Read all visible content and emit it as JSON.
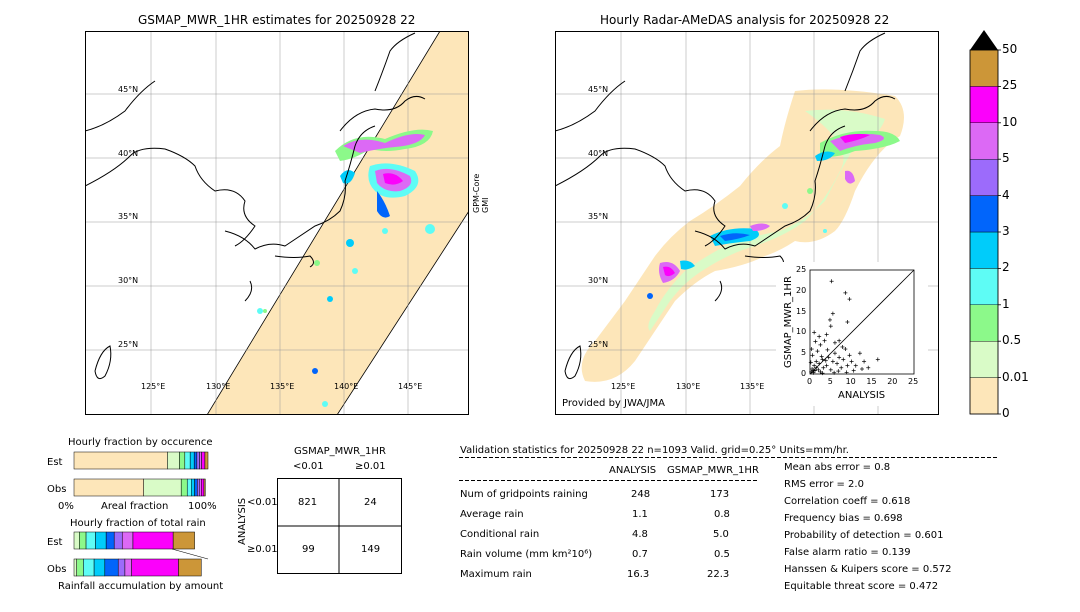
{
  "left_map": {
    "title": "GSMAP_MWR_1HR estimates for 20250928 22",
    "satellite_label": "GPM-Core\nGMI",
    "lat_labels": [
      "45°N",
      "40°N",
      "35°N",
      "30°N",
      "25°N"
    ],
    "lon_labels": [
      "125°E",
      "130°E",
      "135°E",
      "140°E",
      "145°E"
    ]
  },
  "right_map": {
    "title": "Hourly Radar-AMeDAS analysis for 20250928 22",
    "provided_by": "Provided by JWA/JMA",
    "lat_labels": [
      "45°N",
      "40°N",
      "35°N",
      "30°N",
      "25°N"
    ],
    "lon_labels": [
      "125°E",
      "130°E",
      "135°E"
    ]
  },
  "colorbar": {
    "labels": [
      "0",
      "0.01",
      "0.5",
      "1",
      "2",
      "3",
      "4",
      "5",
      "10",
      "25",
      "50"
    ],
    "colors": [
      "#fde6b9",
      "#d9fbc7",
      "#8cf98a",
      "#5efcf5",
      "#00ccfa",
      "#0165fb",
      "#9c6bfb",
      "#dc69f5",
      "#fb01fb",
      "#cc9638"
    ],
    "extend_color": "#000000"
  },
  "chart_data": [
    {
      "type": "scatter",
      "title": "",
      "xlabel": "ANALYSIS",
      "ylabel": "GSMAP_MWR_1HR",
      "xlim": [
        0,
        25
      ],
      "ylim": [
        0,
        25
      ],
      "x_ticks": [
        "0",
        "5",
        "10",
        "15",
        "20",
        "25"
      ],
      "y_ticks": [
        "0",
        "5",
        "10",
        "15",
        "20",
        "25"
      ],
      "points": [
        [
          0.3,
          0.5
        ],
        [
          0.5,
          1.2
        ],
        [
          0.8,
          0.3
        ],
        [
          1.0,
          2.0
        ],
        [
          1.2,
          0.8
        ],
        [
          1.5,
          3.0
        ],
        [
          0.6,
          4.5
        ],
        [
          2.0,
          1.0
        ],
        [
          2.2,
          2.5
        ],
        [
          2.5,
          0.5
        ],
        [
          3.0,
          3.5
        ],
        [
          3.2,
          1.5
        ],
        [
          0.4,
          6.0
        ],
        [
          1.8,
          5.5
        ],
        [
          4.0,
          2.0
        ],
        [
          4.5,
          4.0
        ],
        [
          5.0,
          1.0
        ],
        [
          5.5,
          3.0
        ],
        [
          6.0,
          5.0
        ],
        [
          6.5,
          2.5
        ],
        [
          7.0,
          4.0
        ],
        [
          7.5,
          1.5
        ],
        [
          8.0,
          3.5
        ],
        [
          8.5,
          6.0
        ],
        [
          9.0,
          2.0
        ],
        [
          9.5,
          4.5
        ],
        [
          10.0,
          3.0
        ],
        [
          11.0,
          2.0
        ],
        [
          12.0,
          5.0
        ],
        [
          13.0,
          3.0
        ],
        [
          3.5,
          8.0
        ],
        [
          4.0,
          9.5
        ],
        [
          5.0,
          11.5
        ],
        [
          5.5,
          14.5
        ],
        [
          4.8,
          13.0
        ],
        [
          5.2,
          22.3
        ],
        [
          8.5,
          19.5
        ],
        [
          9.5,
          18.0
        ],
        [
          1.0,
          10.0
        ],
        [
          2.5,
          7.0
        ],
        [
          6.0,
          7.5
        ],
        [
          7.0,
          8.0
        ],
        [
          9.0,
          12.5
        ],
        [
          16.3,
          3.5
        ],
        [
          14.0,
          1.5
        ],
        [
          3.0,
          0.2
        ],
        [
          0.2,
          2.8
        ],
        [
          1.5,
          1.5
        ],
        [
          2.8,
          4.2
        ],
        [
          0.9,
          0.9
        ],
        [
          6.8,
          0.7
        ],
        [
          10.5,
          0.8
        ],
        [
          12.5,
          1.2
        ],
        [
          4.2,
          5.8
        ],
        [
          3.8,
          3.2
        ],
        [
          1.3,
          7.8
        ],
        [
          2.2,
          9.0
        ],
        [
          7.8,
          6.5
        ],
        [
          5.8,
          0.3
        ],
        [
          8.8,
          0.4
        ]
      ]
    },
    {
      "type": "bar",
      "title": "Hourly fraction by occurence",
      "categories": [
        "Est",
        "Obs"
      ],
      "x_ticks": [
        "0%",
        "100%"
      ],
      "xlabel": "Areal fraction",
      "series": [
        {
          "values": [
            0.697,
            0.52
          ]
        },
        {
          "values": [
            0.09,
            0.28
          ]
        },
        {
          "values": [
            0.04,
            0.045
          ]
        },
        {
          "values": [
            0.04,
            0.03
          ]
        },
        {
          "values": [
            0.03,
            0.025
          ]
        },
        {
          "values": [
            0.02,
            0.02
          ]
        },
        {
          "values": [
            0.02,
            0.015
          ]
        },
        {
          "values": [
            0.015,
            0.015
          ]
        },
        {
          "values": [
            0.025,
            0.02
          ]
        },
        {
          "values": [
            0.023,
            0.01
          ]
        }
      ]
    },
    {
      "type": "bar",
      "title": "Hourly fraction of total rain",
      "categories": [
        "Est",
        "Obs"
      ],
      "xlabel": "Rainfall accumulation by amount",
      "series": [
        {
          "values": [
            0.0,
            0.0
          ]
        },
        {
          "values": [
            0.04,
            0.02
          ]
        },
        {
          "values": [
            0.05,
            0.05
          ]
        },
        {
          "values": [
            0.07,
            0.08
          ]
        },
        {
          "values": [
            0.08,
            0.08
          ]
        },
        {
          "values": [
            0.06,
            0.1
          ]
        },
        {
          "values": [
            0.06,
            0.05
          ]
        },
        {
          "values": [
            0.08,
            0.05
          ]
        },
        {
          "values": [
            0.3,
            0.35
          ]
        },
        {
          "values": [
            0.16,
            0.17
          ]
        }
      ]
    },
    {
      "type": "table",
      "title": "GSMAP_MWR_1HR",
      "ylabel": "ANALYSIS",
      "col_headers": [
        "<0.01",
        "≥0.01"
      ],
      "row_headers": [
        "<0.01",
        "≥0.01"
      ],
      "cells": [
        [
          "821",
          "24"
        ],
        [
          "99",
          "149"
        ]
      ]
    },
    {
      "type": "table",
      "title": "Validation statistics for 20250928 22  n=1093 Valid. grid=0.25° Units=mm/hr.",
      "col_headers": [
        "ANALYSIS",
        "GSMAP_MWR_1HR"
      ],
      "rows": [
        {
          "label": "Num of gridpoints raining",
          "analysis": "248",
          "gsmap": "173"
        },
        {
          "label": "Average rain",
          "analysis": "1.1",
          "gsmap": "0.8"
        },
        {
          "label": "Conditional rain",
          "analysis": "4.8",
          "gsmap": "5.0"
        },
        {
          "label": "Rain volume (mm km²10⁶)",
          "analysis": "0.7",
          "gsmap": "0.5"
        },
        {
          "label": "Maximum rain",
          "analysis": "16.3",
          "gsmap": "22.3"
        }
      ],
      "scores": [
        "Mean abs error =    0.8",
        "RMS error =    2.0",
        "Correlation coeff =  0.618",
        "Frequency bias =  0.698",
        "Probability of detection =  0.601",
        "False alarm ratio =  0.139",
        "Hanssen & Kuipers score =  0.572",
        "Equitable threat score =  0.472"
      ]
    }
  ]
}
